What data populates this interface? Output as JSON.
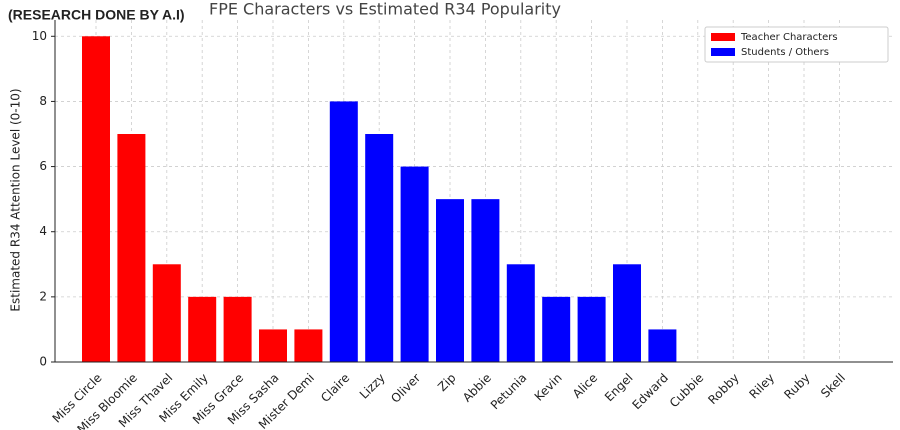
{
  "chart_data": {
    "type": "bar",
    "title": "FPE Characters vs Estimated R34 Popularity",
    "annotation": "(RESEARCH DONE BY A.I)",
    "y_label": "Estimated R34 Attention Level (0-10)",
    "categories": [
      "Miss Circle",
      "Miss Bloomie",
      "Miss Thavel",
      "Miss Emily",
      "Miss Grace",
      "Miss Sasha",
      "Mister Demi",
      "Claire",
      "Lizzy",
      "Oliver",
      "Zip",
      "Abbie",
      "Petunia",
      "Kevin",
      "Alice",
      "Engel",
      "Edward",
      "Cubbie",
      "Robby",
      "Riley",
      "Ruby",
      "Skell"
    ],
    "series": [
      {
        "name": "Teacher Characters",
        "color": "#ff0000",
        "values": [
          10,
          7,
          3,
          2,
          2,
          1,
          1,
          null,
          null,
          null,
          null,
          null,
          null,
          null,
          null,
          null,
          null,
          null,
          null,
          null,
          null,
          null
        ]
      },
      {
        "name": "Students / Others",
        "color": "#0000ff",
        "values": [
          null,
          null,
          null,
          null,
          null,
          null,
          null,
          8,
          7,
          6,
          5,
          5,
          3,
          2,
          2,
          3,
          1,
          0,
          0,
          0,
          0,
          0
        ]
      }
    ],
    "ylim": [
      0,
      10.5
    ],
    "yticks": [
      0,
      2,
      4,
      6,
      8,
      10
    ],
    "grid": true,
    "legend": "upper right"
  }
}
